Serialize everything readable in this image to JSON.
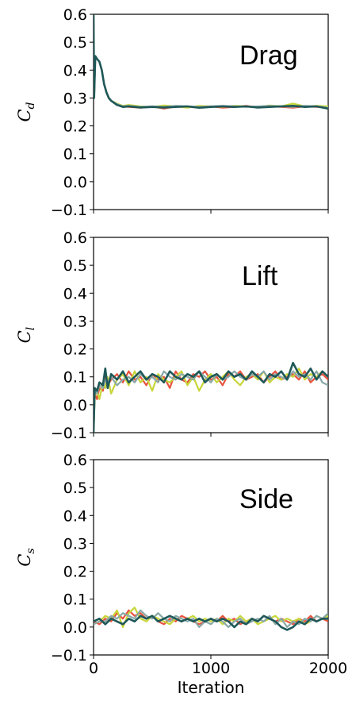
{
  "chart_data": [
    {
      "type": "line",
      "ylabel": "C",
      "ylabel_sub": "d",
      "annotation": "Drag",
      "xlim": [
        0,
        2000
      ],
      "ylim": [
        -0.1,
        0.6
      ],
      "yticks": [
        "−0.1",
        "0.0",
        "0.1",
        "0.2",
        "0.3",
        "0.4",
        "0.5",
        "0.6"
      ],
      "xticks": [],
      "xlabel": "",
      "grid": false,
      "x": [
        0,
        5,
        15,
        30,
        50,
        70,
        90,
        110,
        130,
        150,
        200,
        250,
        300,
        400,
        500,
        600,
        700,
        800,
        900,
        1000,
        1100,
        1200,
        1300,
        1400,
        1500,
        1600,
        1700,
        1800,
        1900,
        2000
      ],
      "series": [
        {
          "color": "#e8533f",
          "values": [
            0.6,
            0.3,
            0.45,
            0.44,
            0.43,
            0.4,
            0.35,
            0.32,
            0.3,
            0.29,
            0.275,
            0.27,
            0.268,
            0.265,
            0.27,
            0.262,
            0.27,
            0.268,
            0.266,
            0.27,
            0.265,
            0.268,
            0.272,
            0.266,
            0.27,
            0.268,
            0.265,
            0.27,
            0.268,
            0.268
          ]
        },
        {
          "color": "#c8d63a",
          "values": [
            0.6,
            0.3,
            0.45,
            0.44,
            0.43,
            0.4,
            0.35,
            0.32,
            0.3,
            0.29,
            0.28,
            0.272,
            0.275,
            0.27,
            0.268,
            0.273,
            0.27,
            0.265,
            0.272,
            0.27,
            0.268,
            0.272,
            0.27,
            0.268,
            0.273,
            0.27,
            0.28,
            0.27,
            0.272,
            0.27
          ]
        },
        {
          "color": "#8aa8a8",
          "values": [
            0.6,
            0.3,
            0.45,
            0.44,
            0.43,
            0.4,
            0.35,
            0.32,
            0.3,
            0.29,
            0.278,
            0.27,
            0.272,
            0.268,
            0.27,
            0.268,
            0.272,
            0.27,
            0.268,
            0.27,
            0.272,
            0.27,
            0.268,
            0.27,
            0.272,
            0.27,
            0.268,
            0.272,
            0.27,
            0.265
          ]
        },
        {
          "color": "#1f5859",
          "values": [
            0.6,
            0.3,
            0.45,
            0.44,
            0.43,
            0.4,
            0.35,
            0.32,
            0.3,
            0.29,
            0.275,
            0.268,
            0.27,
            0.266,
            0.268,
            0.266,
            0.268,
            0.27,
            0.265,
            0.268,
            0.27,
            0.268,
            0.27,
            0.266,
            0.268,
            0.27,
            0.272,
            0.268,
            0.27,
            0.262
          ]
        }
      ]
    },
    {
      "type": "line",
      "ylabel": "C",
      "ylabel_sub": "l",
      "annotation": "Lift",
      "xlim": [
        0,
        2000
      ],
      "ylim": [
        -0.1,
        0.6
      ],
      "yticks": [
        "−0.1",
        "0.0",
        "0.1",
        "0.2",
        "0.3",
        "0.4",
        "0.5",
        "0.6"
      ],
      "xticks": [],
      "xlabel": "",
      "grid": false,
      "x": [
        0,
        10,
        30,
        50,
        80,
        100,
        120,
        150,
        200,
        250,
        300,
        350,
        400,
        450,
        500,
        550,
        600,
        650,
        700,
        750,
        800,
        850,
        900,
        950,
        1000,
        1050,
        1100,
        1150,
        1200,
        1250,
        1300,
        1350,
        1400,
        1450,
        1500,
        1550,
        1600,
        1650,
        1700,
        1750,
        1800,
        1850,
        1900,
        1950,
        2000
      ],
      "series": [
        {
          "color": "#e8533f",
          "values": [
            -0.1,
            0.04,
            0.02,
            0.06,
            0.05,
            0.1,
            0.07,
            0.09,
            0.11,
            0.08,
            0.12,
            0.09,
            0.1,
            0.07,
            0.11,
            0.09,
            0.1,
            0.06,
            0.12,
            0.09,
            0.08,
            0.11,
            0.1,
            0.12,
            0.09,
            0.1,
            0.07,
            0.11,
            0.1,
            0.12,
            0.09,
            0.1,
            0.11,
            0.08,
            0.1,
            0.12,
            0.09,
            0.1,
            0.11,
            0.09,
            0.12,
            0.08,
            0.1,
            0.11,
            0.09
          ]
        },
        {
          "color": "#c8d63a",
          "values": [
            -0.1,
            0.03,
            0.05,
            0.02,
            0.08,
            0.06,
            0.1,
            0.04,
            0.09,
            0.11,
            0.07,
            0.12,
            0.08,
            0.1,
            0.05,
            0.11,
            0.09,
            0.08,
            0.1,
            0.12,
            0.07,
            0.1,
            0.05,
            0.09,
            0.11,
            0.08,
            0.1,
            0.12,
            0.09,
            0.07,
            0.1,
            0.11,
            0.09,
            0.12,
            0.08,
            0.1,
            0.09,
            0.11,
            0.1,
            0.13,
            0.09,
            0.11,
            0.1,
            0.12,
            0.1
          ]
        },
        {
          "color": "#8aa8a8",
          "values": [
            -0.1,
            0.05,
            0.04,
            0.07,
            0.06,
            0.09,
            0.08,
            0.1,
            0.07,
            0.09,
            0.1,
            0.08,
            0.11,
            0.09,
            0.1,
            0.08,
            0.12,
            0.1,
            0.09,
            0.11,
            0.1,
            0.09,
            0.12,
            0.1,
            0.08,
            0.11,
            0.09,
            0.1,
            0.12,
            0.1,
            0.09,
            0.11,
            0.1,
            0.12,
            0.09,
            0.11,
            0.1,
            0.09,
            0.12,
            0.1,
            0.11,
            0.09,
            0.12,
            0.08,
            0.07
          ]
        },
        {
          "color": "#1f5859",
          "values": [
            -0.1,
            0.06,
            0.05,
            0.08,
            0.07,
            0.13,
            0.06,
            0.11,
            0.09,
            0.12,
            0.08,
            0.1,
            0.12,
            0.09,
            0.11,
            0.1,
            0.08,
            0.12,
            0.1,
            0.09,
            0.11,
            0.1,
            0.12,
            0.08,
            0.1,
            0.11,
            0.09,
            0.12,
            0.1,
            0.11,
            0.09,
            0.12,
            0.1,
            0.08,
            0.11,
            0.1,
            0.12,
            0.09,
            0.15,
            0.11,
            0.1,
            0.13,
            0.09,
            0.12,
            0.1
          ]
        }
      ]
    },
    {
      "type": "line",
      "ylabel": "C",
      "ylabel_sub": "s",
      "annotation": "Side",
      "xlim": [
        0,
        2000
      ],
      "ylim": [
        -0.1,
        0.6
      ],
      "yticks": [
        "−0.1",
        "0.0",
        "0.1",
        "0.2",
        "0.3",
        "0.4",
        "0.5",
        "0.6"
      ],
      "xticks": [
        "0",
        "1000",
        "2000"
      ],
      "xtick_values": [
        0,
        1000,
        2000
      ],
      "xlabel": "Iteration",
      "grid": false,
      "x": [
        0,
        50,
        100,
        150,
        200,
        250,
        300,
        350,
        400,
        450,
        500,
        550,
        600,
        650,
        700,
        750,
        800,
        850,
        900,
        950,
        1000,
        1050,
        1100,
        1150,
        1200,
        1250,
        1300,
        1350,
        1400,
        1450,
        1500,
        1550,
        1600,
        1650,
        1700,
        1750,
        1800,
        1850,
        1900,
        1950,
        2000
      ],
      "series": [
        {
          "color": "#e8533f",
          "values": [
            0.02,
            0.01,
            0.03,
            0.02,
            0.05,
            0.03,
            0.06,
            0.04,
            0.05,
            0.03,
            0.04,
            0.02,
            0.01,
            0.03,
            0.02,
            0.04,
            0.03,
            0.02,
            0.01,
            0.02,
            0.03,
            0.02,
            0.04,
            0.02,
            0.03,
            0.01,
            0.02,
            0.03,
            0.02,
            0.04,
            0.03,
            0.02,
            0.03,
            0.02,
            0.01,
            0.03,
            0.02,
            0.04,
            0.02,
            0.03,
            0.02
          ]
        },
        {
          "color": "#c8d63a",
          "values": [
            0.01,
            0.02,
            0.04,
            0.03,
            0.06,
            0.0,
            0.05,
            0.07,
            0.03,
            0.02,
            0.04,
            0.03,
            0.02,
            0.01,
            0.03,
            0.02,
            0.03,
            0.04,
            0.02,
            0.03,
            0.02,
            0.03,
            0.01,
            0.03,
            0.02,
            0.04,
            0.02,
            0.03,
            0.01,
            0.02,
            0.03,
            0.04,
            0.02,
            0.03,
            0.02,
            0.03,
            0.01,
            0.02,
            0.04,
            0.03,
            0.04
          ]
        },
        {
          "color": "#8aa8a8",
          "values": [
            0.01,
            0.02,
            0.02,
            0.04,
            0.03,
            0.05,
            0.04,
            0.03,
            0.06,
            0.04,
            0.03,
            0.05,
            0.03,
            0.02,
            0.04,
            0.03,
            0.02,
            0.03,
            0.0,
            0.02,
            0.01,
            0.03,
            0.02,
            0.0,
            0.02,
            0.03,
            0.01,
            0.02,
            0.03,
            0.02,
            0.04,
            0.01,
            0.03,
            0.0,
            0.02,
            0.01,
            0.03,
            0.02,
            0.04,
            0.03,
            0.05
          ]
        },
        {
          "color": "#1f5859",
          "values": [
            0.02,
            0.03,
            0.01,
            0.03,
            0.02,
            0.01,
            0.03,
            0.02,
            0.04,
            0.03,
            0.04,
            0.02,
            0.03,
            0.04,
            0.03,
            0.02,
            0.03,
            0.02,
            0.03,
            0.02,
            0.03,
            0.02,
            0.03,
            0.02,
            0.0,
            0.02,
            0.01,
            0.03,
            0.02,
            0.04,
            0.03,
            0.02,
            0.0,
            -0.01,
            0.0,
            0.02,
            0.01,
            0.03,
            0.02,
            0.03,
            0.03
          ]
        }
      ]
    }
  ]
}
